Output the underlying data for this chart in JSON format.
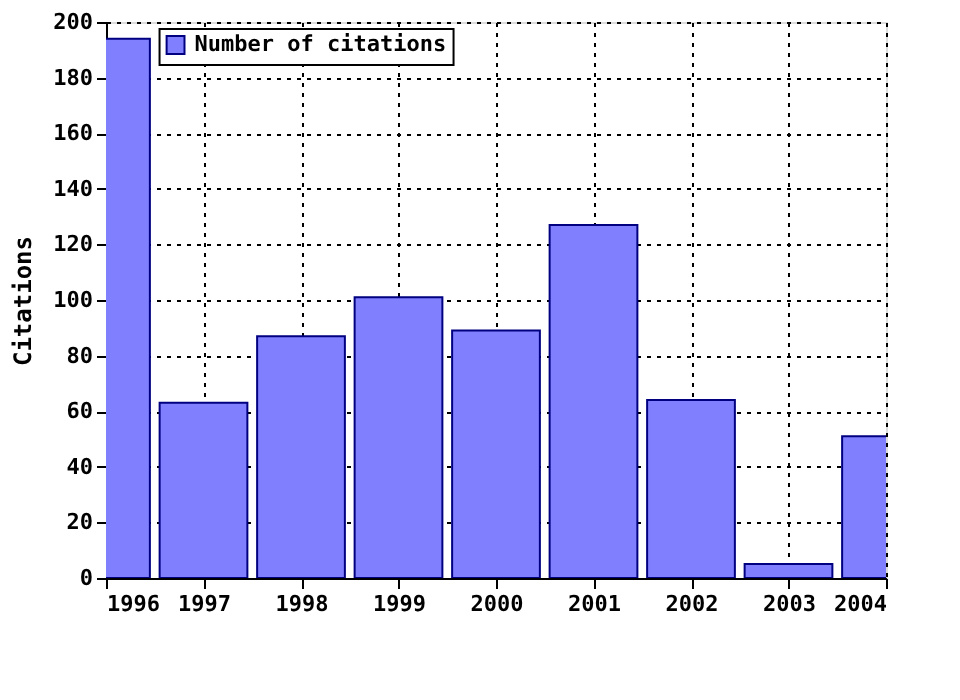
{
  "chart_data": {
    "type": "bar",
    "ylabel": "Citations",
    "x": [
      1996,
      1997,
      1998,
      1999,
      2000,
      2001,
      2002,
      2003,
      2004
    ],
    "series": [
      {
        "name": "Number of citations",
        "color": "#8080ff",
        "values": [
          194,
          63,
          87,
          101,
          89,
          127,
          64,
          5,
          51
        ]
      }
    ],
    "xlim": [
      1996,
      2004
    ],
    "xticks": [
      1996,
      1997,
      1998,
      1999,
      2000,
      2001,
      2002,
      2003,
      2004
    ],
    "ylim": [
      0,
      200
    ],
    "yticks": [
      0,
      20,
      40,
      60,
      80,
      100,
      120,
      140,
      160,
      180,
      200
    ],
    "grid": true,
    "legend": "top left"
  }
}
